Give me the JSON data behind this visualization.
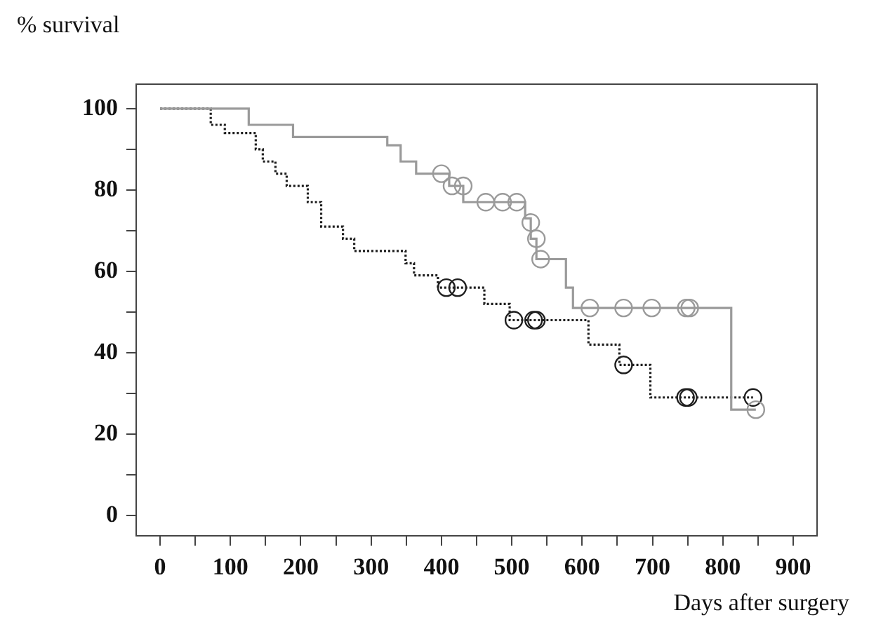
{
  "chart_data": {
    "type": "step",
    "xlabel": "Days after surgery",
    "ylabel": "% survival",
    "xlim": [
      -34,
      934
    ],
    "ylim": [
      -5,
      106
    ],
    "xticks": [
      0,
      {
        "value": 50,
        "label": null
      },
      100,
      {
        "value": 150,
        "label": null
      },
      200,
      {
        "value": 250,
        "label": null
      },
      300,
      {
        "value": 350,
        "label": null
      },
      400,
      {
        "value": 450,
        "label": null
      },
      500,
      {
        "value": 550,
        "label": null
      },
      600,
      {
        "value": 650,
        "label": null
      },
      700,
      {
        "value": 750,
        "label": null
      },
      800,
      {
        "value": 850,
        "label": null
      },
      900
    ],
    "yticks": [
      0,
      {
        "value": 10,
        "label": null
      },
      20,
      {
        "value": 30,
        "label": null
      },
      40,
      {
        "value": 50,
        "label": null
      },
      60,
      {
        "value": 70,
        "label": null
      },
      80,
      {
        "value": 90,
        "label": null
      },
      100
    ],
    "grid": false,
    "legend": false,
    "series": [
      {
        "type": "step",
        "color": "#9a9a9a",
        "line_style": "solid",
        "marker": "none",
        "x": [
          0,
          126,
          189,
          323,
          342,
          364,
          411,
          431,
          519,
          527,
          535,
          577,
          587,
          812,
          847
        ],
        "values": [
          100,
          96,
          93,
          91,
          87,
          84,
          81,
          77,
          73,
          68,
          63,
          56,
          51,
          26,
          26
        ]
      },
      {
        "type": "step",
        "color": "#1e1e1e",
        "line_style": "dotted",
        "marker": "none",
        "x": [
          0,
          72,
          92,
          136,
          146,
          164,
          180,
          210,
          229,
          260,
          276,
          349,
          361,
          395,
          461,
          497,
          609,
          653,
          697,
          843
        ],
        "values": [
          100,
          96,
          94,
          90,
          87,
          84,
          81,
          77,
          71,
          68,
          65,
          62,
          59,
          56,
          52,
          48,
          42,
          37,
          29,
          29
        ]
      },
      {
        "type": "scatter",
        "color": "#9a9a9a",
        "marker": "circle",
        "x": [
          400,
          415,
          431,
          463,
          487,
          507,
          527,
          535,
          541,
          611,
          659,
          699,
          748,
          753,
          847
        ],
        "values": [
          84,
          81,
          81,
          77,
          77,
          77,
          72,
          68,
          63,
          51,
          51,
          51,
          51,
          51,
          26
        ]
      },
      {
        "type": "scatter",
        "color": "#1e1e1e",
        "marker": "circle",
        "x": [
          407,
          423,
          503,
          531,
          535,
          659,
          747,
          751,
          843
        ],
        "values": [
          56,
          56,
          48,
          48,
          48,
          37,
          29,
          29,
          29
        ]
      }
    ]
  }
}
